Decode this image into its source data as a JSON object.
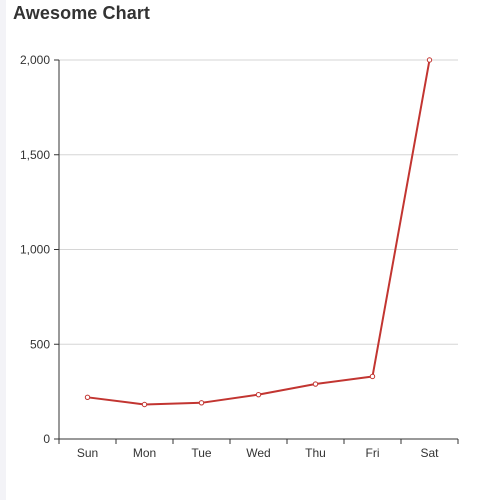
{
  "chart_data": {
    "type": "line",
    "title": "Awesome Chart",
    "categories": [
      "Sun",
      "Mon",
      "Tue",
      "Wed",
      "Thu",
      "Fri",
      "Sat"
    ],
    "series": [
      {
        "values": [
          220,
          182,
          191,
          234,
          290,
          330,
          2000
        ]
      }
    ],
    "ylim": [
      0,
      2000
    ],
    "y_ticks": [
      0,
      500,
      1000,
      1500,
      2000
    ],
    "y_tick_labels": [
      "0",
      "500",
      "1,000",
      "1,500",
      "2,000"
    ],
    "grid": true,
    "line_color": "#c23531"
  }
}
